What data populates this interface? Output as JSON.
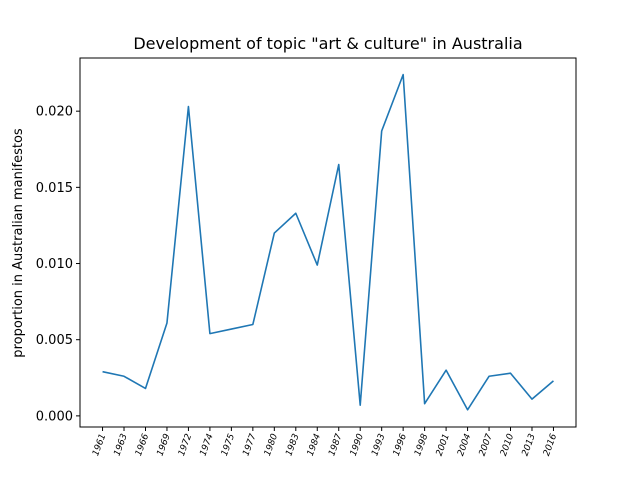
{
  "chart_data": {
    "type": "line",
    "title": "Development of topic \"art & culture\" in Australia",
    "xlabel": "",
    "ylabel": "proportion in Australian manifestos",
    "categories": [
      "1961",
      "1963",
      "1966",
      "1969",
      "1972",
      "1974",
      "1975",
      "1977",
      "1980",
      "1983",
      "1984",
      "1987",
      "1990",
      "1993",
      "1996",
      "1998",
      "2001",
      "2004",
      "2007",
      "2010",
      "2013",
      "2016"
    ],
    "series": [
      {
        "values": [
          0.0029,
          0.0026,
          0.0018,
          0.0061,
          0.0203,
          0.0054,
          0.0057,
          0.006,
          0.012,
          0.0133,
          0.0099,
          0.0165,
          0.0007,
          0.0187,
          0.0224,
          0.0008,
          0.003,
          0.0004,
          0.0026,
          0.0028,
          0.0011,
          0.0023
        ],
        "color": "#1f77b4"
      }
    ],
    "ylim": [
      -0.00073,
      0.02349
    ],
    "yticks": [
      "0.000",
      "0.005",
      "0.010",
      "0.015",
      "0.020"
    ],
    "ytick_values": [
      0,
      0.005,
      0.01,
      0.015,
      0.02
    ],
    "grid": false,
    "legend": "none"
  }
}
